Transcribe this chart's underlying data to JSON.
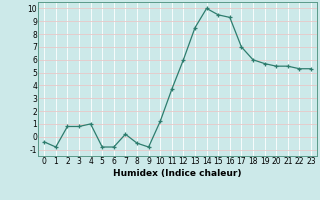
{
  "x": [
    0,
    1,
    2,
    3,
    4,
    5,
    6,
    7,
    8,
    9,
    10,
    11,
    12,
    13,
    14,
    15,
    16,
    17,
    18,
    19,
    20,
    21,
    22,
    23
  ],
  "y": [
    -0.4,
    -0.8,
    0.8,
    0.8,
    1.0,
    -0.8,
    -0.8,
    0.2,
    -0.5,
    -0.8,
    1.2,
    3.7,
    6.0,
    8.5,
    10.0,
    9.5,
    9.3,
    7.0,
    6.0,
    5.7,
    5.5,
    5.5,
    5.3,
    5.3
  ],
  "xlabel": "Humidex (Indice chaleur)",
  "ylabel": "",
  "ylim": [
    -1.5,
    10.5
  ],
  "xlim": [
    -0.5,
    23.5
  ],
  "line_color": "#2e7d6e",
  "marker": "+",
  "marker_color": "#2e7d6e",
  "bg_color": "#cce9e9",
  "grid_color": "#e8c8c8",
  "yticks": [
    -1,
    0,
    1,
    2,
    3,
    4,
    5,
    6,
    7,
    8,
    9,
    10
  ],
  "xticks": [
    0,
    1,
    2,
    3,
    4,
    5,
    6,
    7,
    8,
    9,
    10,
    11,
    12,
    13,
    14,
    15,
    16,
    17,
    18,
    19,
    20,
    21,
    22,
    23
  ],
  "xtick_labels": [
    "0",
    "1",
    "2",
    "3",
    "4",
    "5",
    "6",
    "7",
    "8",
    "9",
    "10",
    "11",
    "12",
    "13",
    "14",
    "15",
    "16",
    "17",
    "18",
    "19",
    "20",
    "21",
    "22",
    "23"
  ],
  "tick_fontsize": 5.5,
  "label_fontsize": 6.5
}
